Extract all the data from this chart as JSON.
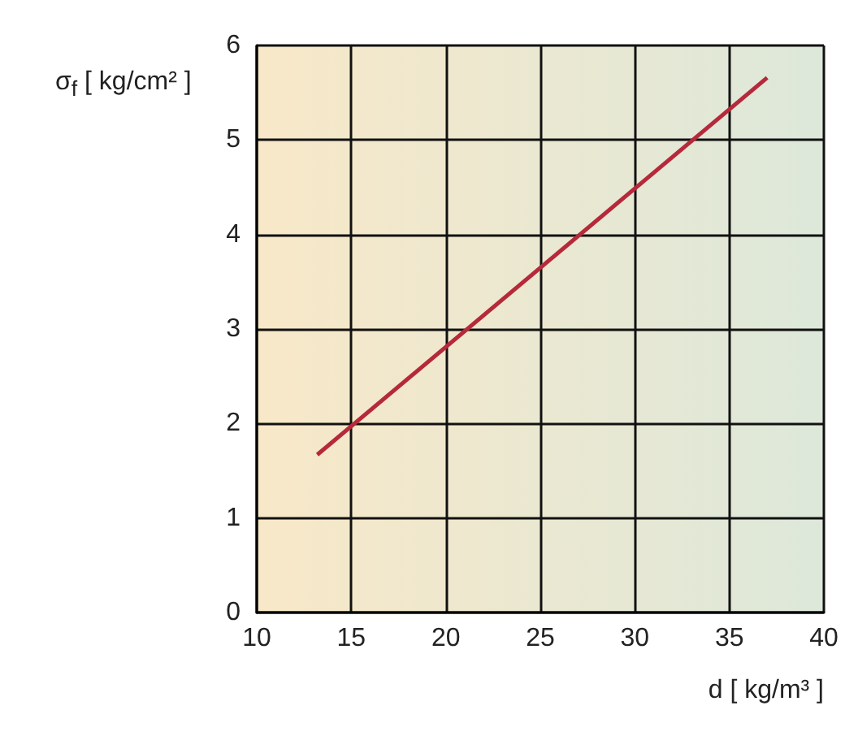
{
  "chart_data": {
    "type": "line",
    "xlabel": "d [ kg/m³ ]",
    "ylabel": "σ$_{f}$ [ kg/cm² ]",
    "x": [
      13.2,
      37
    ],
    "series": [
      {
        "color": "#b5293a",
        "values": [
          1.67,
          5.66
        ]
      }
    ],
    "xlim": [
      10,
      40
    ],
    "xticks": [
      10,
      15,
      20,
      25,
      30,
      35,
      40
    ],
    "ylim": [
      0,
      6
    ],
    "yticks": [
      0,
      1,
      2,
      3,
      4,
      5,
      6
    ],
    "grid": true,
    "marker": "none",
    "line_style": "solid"
  }
}
